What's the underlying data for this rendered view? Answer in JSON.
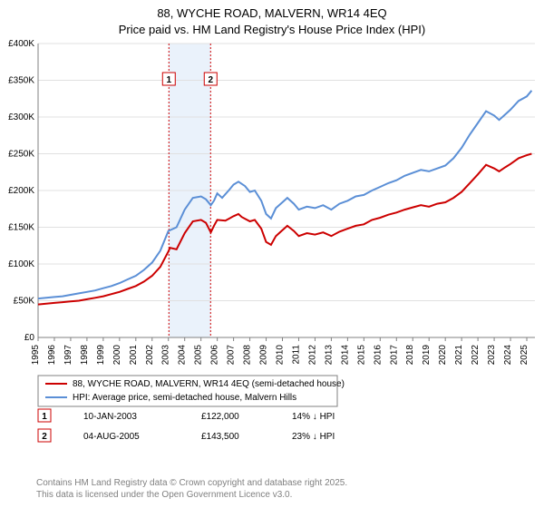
{
  "title_line1": "88, WYCHE ROAD, MALVERN, WR14 4EQ",
  "title_line2": "Price paid vs. HM Land Registry's House Price Index (HPI)",
  "chart": {
    "type": "line",
    "x_min": 1995,
    "x_max": 2025.5,
    "x_ticks": [
      1995,
      1996,
      1997,
      1998,
      1999,
      2000,
      2001,
      2002,
      2003,
      2004,
      2005,
      2006,
      2007,
      2008,
      2009,
      2010,
      2011,
      2012,
      2013,
      2014,
      2015,
      2016,
      2017,
      2018,
      2019,
      2020,
      2021,
      2022,
      2023,
      2024,
      2025
    ],
    "y_min": 0,
    "y_max": 400,
    "y_ticks": [
      0,
      50,
      100,
      150,
      200,
      250,
      300,
      350,
      400
    ],
    "y_tick_labels": [
      "£0",
      "£50K",
      "£100K",
      "£150K",
      "£200K",
      "£250K",
      "£300K",
      "£350K",
      "£400K"
    ],
    "grid_color": "#e0e0e0",
    "axis_color": "#808080",
    "background_color": "#ffffff",
    "band_color": "#eaf2fb",
    "band_x1": 2003.03,
    "band_x2": 2005.59,
    "markers": [
      {
        "num": "1",
        "x": 2003.03,
        "color": "#cc0000"
      },
      {
        "num": "2",
        "x": 2005.59,
        "color": "#cc0000"
      }
    ],
    "series": [
      {
        "name": "property",
        "color": "#cc0000",
        "width": 2,
        "points": [
          [
            1995.0,
            45
          ],
          [
            1995.5,
            46
          ],
          [
            1996.0,
            47
          ],
          [
            1996.5,
            48
          ],
          [
            1997.0,
            49
          ],
          [
            1997.5,
            50
          ],
          [
            1998.0,
            52
          ],
          [
            1998.5,
            54
          ],
          [
            1999.0,
            56
          ],
          [
            1999.5,
            59
          ],
          [
            2000.0,
            62
          ],
          [
            2000.5,
            66
          ],
          [
            2001.0,
            70
          ],
          [
            2001.5,
            76
          ],
          [
            2002.0,
            84
          ],
          [
            2002.5,
            96
          ],
          [
            2003.0,
            117
          ],
          [
            2003.1,
            122
          ],
          [
            2003.5,
            120
          ],
          [
            2004.0,
            142
          ],
          [
            2004.5,
            158
          ],
          [
            2005.0,
            160
          ],
          [
            2005.3,
            156
          ],
          [
            2005.6,
            143
          ],
          [
            2005.8,
            152
          ],
          [
            2006.0,
            160
          ],
          [
            2006.5,
            159
          ],
          [
            2007.0,
            165
          ],
          [
            2007.3,
            168
          ],
          [
            2007.5,
            164
          ],
          [
            2008.0,
            158
          ],
          [
            2008.3,
            160
          ],
          [
            2008.7,
            148
          ],
          [
            2009.0,
            130
          ],
          [
            2009.3,
            126
          ],
          [
            2009.6,
            138
          ],
          [
            2010.0,
            146
          ],
          [
            2010.3,
            152
          ],
          [
            2010.7,
            145
          ],
          [
            2011.0,
            138
          ],
          [
            2011.5,
            142
          ],
          [
            2012.0,
            140
          ],
          [
            2012.5,
            143
          ],
          [
            2013.0,
            138
          ],
          [
            2013.5,
            144
          ],
          [
            2014.0,
            148
          ],
          [
            2014.5,
            152
          ],
          [
            2015.0,
            154
          ],
          [
            2015.5,
            160
          ],
          [
            2016.0,
            163
          ],
          [
            2016.5,
            167
          ],
          [
            2017.0,
            170
          ],
          [
            2017.5,
            174
          ],
          [
            2018.0,
            177
          ],
          [
            2018.5,
            180
          ],
          [
            2019.0,
            178
          ],
          [
            2019.5,
            182
          ],
          [
            2020.0,
            184
          ],
          [
            2020.5,
            190
          ],
          [
            2021.0,
            198
          ],
          [
            2021.5,
            210
          ],
          [
            2022.0,
            222
          ],
          [
            2022.5,
            235
          ],
          [
            2023.0,
            230
          ],
          [
            2023.3,
            226
          ],
          [
            2023.7,
            232
          ],
          [
            2024.0,
            236
          ],
          [
            2024.5,
            244
          ],
          [
            2025.0,
            248
          ],
          [
            2025.3,
            250
          ]
        ]
      },
      {
        "name": "hpi",
        "color": "#5b8fd6",
        "width": 2,
        "points": [
          [
            1995.0,
            53
          ],
          [
            1995.5,
            54
          ],
          [
            1996.0,
            55
          ],
          [
            1996.5,
            56
          ],
          [
            1997.0,
            58
          ],
          [
            1997.5,
            60
          ],
          [
            1998.0,
            62
          ],
          [
            1998.5,
            64
          ],
          [
            1999.0,
            67
          ],
          [
            1999.5,
            70
          ],
          [
            2000.0,
            74
          ],
          [
            2000.5,
            79
          ],
          [
            2001.0,
            84
          ],
          [
            2001.5,
            92
          ],
          [
            2002.0,
            102
          ],
          [
            2002.5,
            118
          ],
          [
            2003.0,
            145
          ],
          [
            2003.5,
            150
          ],
          [
            2004.0,
            174
          ],
          [
            2004.5,
            190
          ],
          [
            2005.0,
            192
          ],
          [
            2005.3,
            188
          ],
          [
            2005.6,
            180
          ],
          [
            2005.8,
            186
          ],
          [
            2006.0,
            196
          ],
          [
            2006.3,
            190
          ],
          [
            2006.7,
            200
          ],
          [
            2007.0,
            208
          ],
          [
            2007.3,
            212
          ],
          [
            2007.7,
            206
          ],
          [
            2008.0,
            198
          ],
          [
            2008.3,
            200
          ],
          [
            2008.7,
            186
          ],
          [
            2009.0,
            168
          ],
          [
            2009.3,
            162
          ],
          [
            2009.6,
            176
          ],
          [
            2010.0,
            184
          ],
          [
            2010.3,
            190
          ],
          [
            2010.7,
            182
          ],
          [
            2011.0,
            174
          ],
          [
            2011.5,
            178
          ],
          [
            2012.0,
            176
          ],
          [
            2012.5,
            180
          ],
          [
            2013.0,
            174
          ],
          [
            2013.5,
            182
          ],
          [
            2014.0,
            186
          ],
          [
            2014.5,
            192
          ],
          [
            2015.0,
            194
          ],
          [
            2015.5,
            200
          ],
          [
            2016.0,
            205
          ],
          [
            2016.5,
            210
          ],
          [
            2017.0,
            214
          ],
          [
            2017.5,
            220
          ],
          [
            2018.0,
            224
          ],
          [
            2018.5,
            228
          ],
          [
            2019.0,
            226
          ],
          [
            2019.5,
            230
          ],
          [
            2020.0,
            234
          ],
          [
            2020.5,
            244
          ],
          [
            2021.0,
            258
          ],
          [
            2021.5,
            276
          ],
          [
            2022.0,
            292
          ],
          [
            2022.5,
            308
          ],
          [
            2023.0,
            302
          ],
          [
            2023.3,
            296
          ],
          [
            2023.7,
            304
          ],
          [
            2024.0,
            310
          ],
          [
            2024.5,
            322
          ],
          [
            2025.0,
            328
          ],
          [
            2025.3,
            336
          ]
        ]
      }
    ]
  },
  "legend": {
    "items": [
      {
        "color": "#cc0000",
        "label": "88, WYCHE ROAD, MALVERN, WR14 4EQ (semi-detached house)"
      },
      {
        "color": "#5b8fd6",
        "label": "HPI: Average price, semi-detached house, Malvern Hills"
      }
    ]
  },
  "sales": [
    {
      "num": "1",
      "color": "#cc0000",
      "date": "10-JAN-2003",
      "price": "£122,000",
      "delta": "14% ↓ HPI"
    },
    {
      "num": "2",
      "color": "#cc0000",
      "date": "04-AUG-2005",
      "price": "£143,500",
      "delta": "23% ↓ HPI"
    }
  ],
  "footer_line1": "Contains HM Land Registry data © Crown copyright and database right 2025.",
  "footer_line2": "This data is licensed under the Open Government Licence v3.0."
}
